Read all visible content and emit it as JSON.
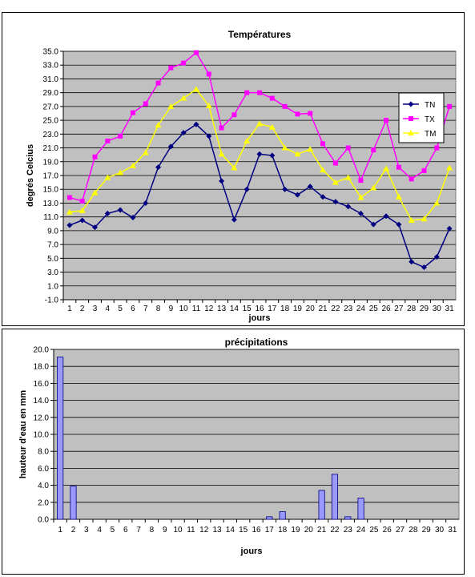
{
  "charts": [
    {
      "chart_data": {
        "type": "line",
        "title": "Températures",
        "xlabel": "jours",
        "ylabel": "degrés Celcius",
        "x": [
          1,
          2,
          3,
          4,
          5,
          6,
          7,
          8,
          9,
          10,
          11,
          12,
          13,
          14,
          15,
          16,
          17,
          18,
          19,
          20,
          21,
          22,
          23,
          24,
          25,
          26,
          27,
          28,
          29,
          30,
          31
        ],
        "ylim": [
          -1,
          35
        ],
        "yticks": [
          "-1.0",
          "1.0",
          "3.0",
          "5.0",
          "7.0",
          "9.0",
          "11.0",
          "13.0",
          "15.0",
          "17.0",
          "19.0",
          "21.0",
          "23.0",
          "25.0",
          "27.0",
          "29.0",
          "31.0",
          "33.0",
          "35.0"
        ],
        "grid": true,
        "legend_position": "right",
        "plot_background": "#c0c0c0",
        "series": [
          {
            "name": "TN",
            "color": "#000080",
            "marker": "diamond",
            "values": [
              9.8,
              10.5,
              9.5,
              11.5,
              12.0,
              10.9,
              13.0,
              18.2,
              21.2,
              23.2,
              24.4,
              22.7,
              16.2,
              10.6,
              15.0,
              20.1,
              19.9,
              15.0,
              14.2,
              15.4,
              13.9,
              13.2,
              12.5,
              11.5,
              9.9,
              11.1,
              9.9,
              4.5,
              3.7,
              5.2,
              9.3
            ]
          },
          {
            "name": "TX",
            "color": "#ff00ff",
            "marker": "square",
            "values": [
              13.8,
              13.3,
              19.7,
              22.0,
              22.7,
              26.1,
              27.4,
              30.4,
              32.6,
              33.3,
              34.8,
              31.7,
              23.9,
              25.8,
              29.0,
              29.0,
              28.2,
              27.0,
              25.9,
              26.0,
              21.6,
              18.8,
              21.0,
              16.3,
              20.7,
              25.0,
              18.2,
              16.5,
              17.7,
              21.0,
              27.0
            ]
          },
          {
            "name": "TM",
            "color": "#ffff00",
            "marker": "triangle",
            "values": [
              11.7,
              11.9,
              14.5,
              16.7,
              17.4,
              18.4,
              20.3,
              24.3,
              27.0,
              28.2,
              29.5,
              27.1,
              20.1,
              18.1,
              22.0,
              24.5,
              24.0,
              21.0,
              20.1,
              20.8,
              17.8,
              16.0,
              16.7,
              13.8,
              15.2,
              18.0,
              13.9,
              10.5,
              10.7,
              13.0,
              18.1
            ]
          }
        ]
      }
    },
    {
      "chart_data": {
        "type": "bar",
        "title": "précipitations",
        "xlabel": "jours",
        "ylabel": "hauteur d'eau en mm",
        "categories": [
          "1",
          "2",
          "3",
          "4",
          "5",
          "6",
          "7",
          "8",
          "9",
          "10",
          "11",
          "12",
          "13",
          "14",
          "15",
          "16",
          "17",
          "18",
          "19",
          "20",
          "21",
          "22",
          "23",
          "24",
          "25",
          "26",
          "27",
          "28",
          "29",
          "30",
          "31"
        ],
        "values": [
          19.1,
          3.9,
          0,
          0,
          0,
          0,
          0,
          0,
          0,
          0,
          0,
          0,
          0,
          0,
          0,
          0,
          0.3,
          0.9,
          0,
          0,
          3.4,
          5.3,
          0.3,
          2.5,
          0,
          0,
          0,
          0,
          0,
          0,
          0
        ],
        "ylim": [
          0,
          20
        ],
        "yticks": [
          "0.0",
          "2.0",
          "4.0",
          "6.0",
          "8.0",
          "10.0",
          "12.0",
          "14.0",
          "16.0",
          "18.0",
          "20.0"
        ],
        "grid": true,
        "bar_color": "#9999ff",
        "plot_background": "#c0c0c0"
      }
    }
  ]
}
